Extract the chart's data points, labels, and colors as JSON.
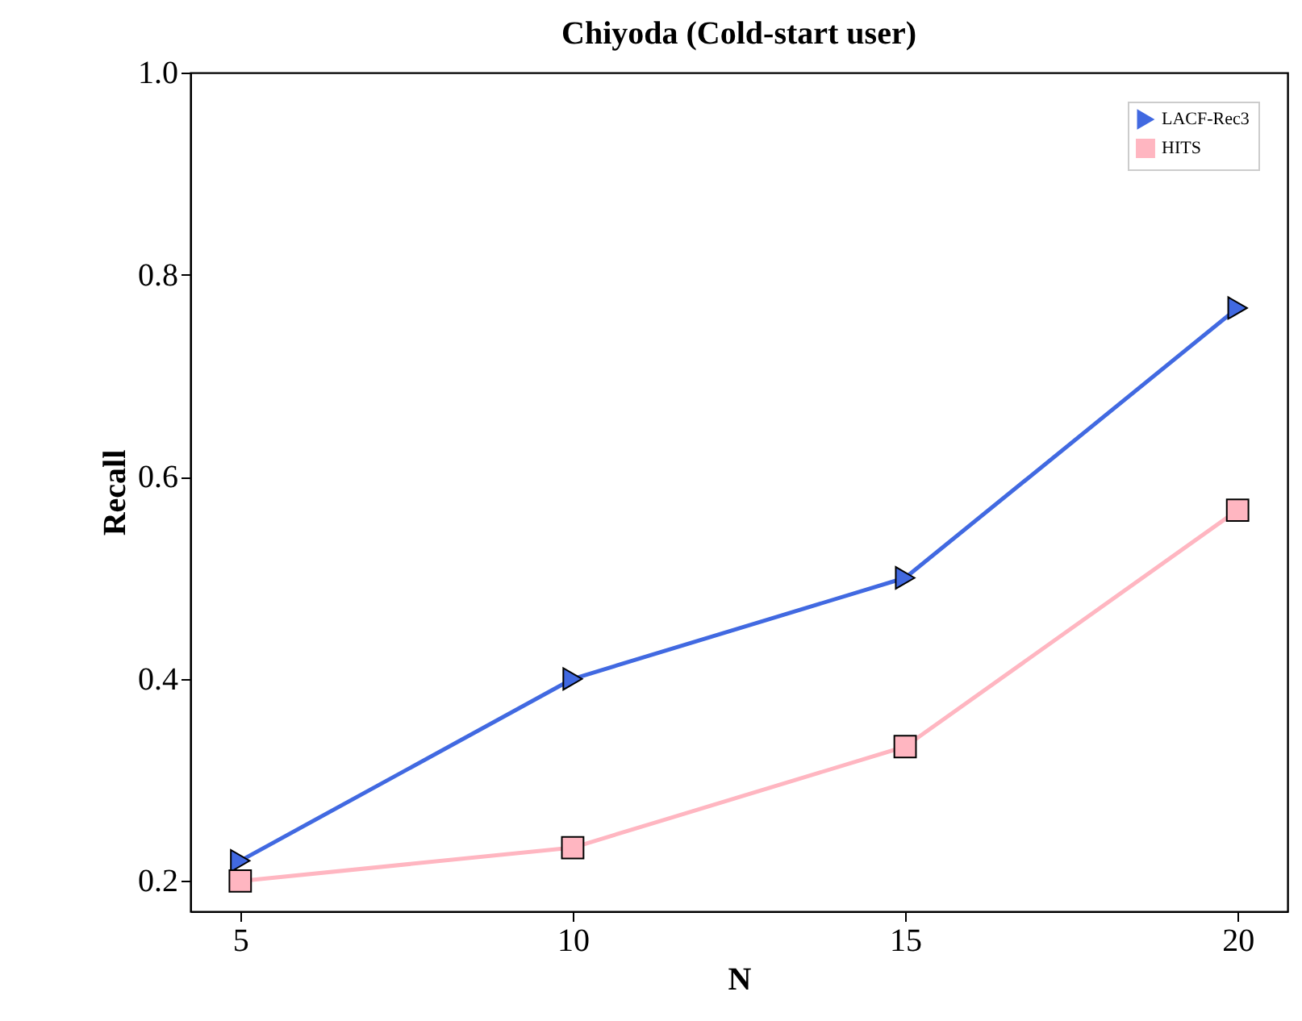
{
  "chart_data": {
    "type": "line",
    "title": "Chiyoda (Cold-start user)",
    "xlabel": "N",
    "ylabel": "Recall",
    "x": [
      5,
      10,
      15,
      20
    ],
    "series": [
      {
        "name": "LACF-Rec3",
        "color": "#4169e1",
        "marker": "triangle",
        "values": [
          0.22,
          0.4,
          0.5,
          0.767
        ]
      },
      {
        "name": "HITS",
        "color": "#ffb6c1",
        "marker": "square",
        "values": [
          0.2,
          0.233,
          0.333,
          0.567
        ]
      }
    ],
    "xlim": [
      4.25,
      20.75
    ],
    "xticks": [
      5,
      10,
      15,
      20
    ],
    "ylim": [
      0.17,
      1.0
    ],
    "yticks": [
      0.2,
      0.4,
      0.6,
      0.8,
      {
        "value": 1.0,
        "label": "1.0"
      }
    ],
    "grid": false,
    "legend": "top right",
    "line_style": "solid"
  }
}
